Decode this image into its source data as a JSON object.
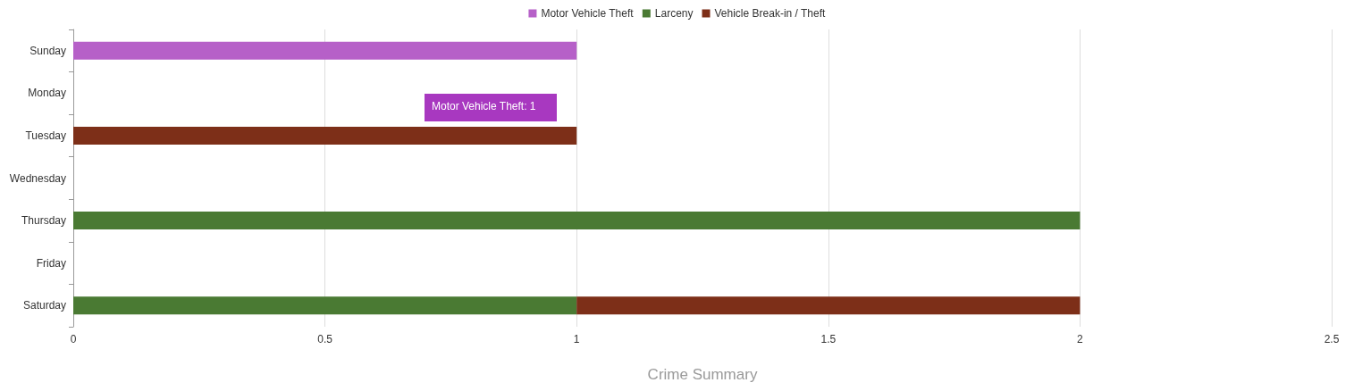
{
  "chart_data": {
    "type": "bar",
    "orientation": "horizontal",
    "stacked": true,
    "xlabel": "Crime Summary",
    "categories": [
      "Sunday",
      "Monday",
      "Tuesday",
      "Wednesday",
      "Thursday",
      "Friday",
      "Saturday"
    ],
    "series": [
      {
        "name": "Motor Vehicle Theft",
        "color": "#b660c8",
        "values": [
          1,
          null,
          null,
          null,
          null,
          null,
          null
        ]
      },
      {
        "name": "Larceny",
        "color": "#4a7a33",
        "values": [
          null,
          null,
          null,
          null,
          2,
          null,
          1
        ]
      },
      {
        "name": "Vehicle Break-in / Theft",
        "color": "#7d2f18",
        "values": [
          null,
          null,
          1,
          null,
          null,
          null,
          1
        ]
      }
    ],
    "xlim": [
      0,
      2.5
    ],
    "xticks": [
      0,
      0.5,
      1,
      1.5,
      2,
      2.5
    ],
    "grid": "x",
    "legend": "top",
    "annotations": [
      "Motor Vehicle Theft: 1"
    ]
  }
}
